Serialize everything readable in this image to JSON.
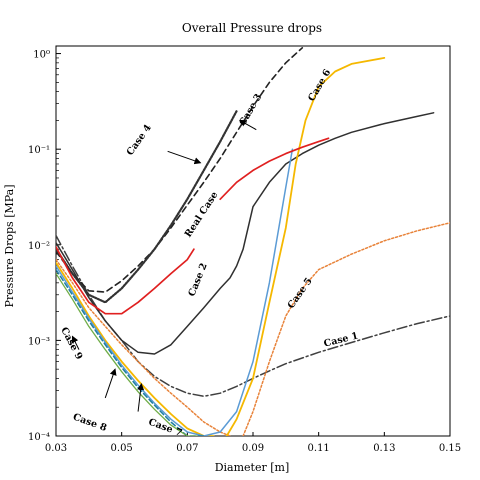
{
  "chart_data": {
    "type": "line",
    "title": "Overall Pressure drops",
    "xlabel": "Diameter [m]",
    "ylabel": "Pressure Drops [MPa]",
    "xlim": [
      0.03,
      0.15
    ],
    "ylim": [
      0.0001,
      1.2
    ],
    "yscale": "log",
    "grid": false,
    "legend": "none",
    "x_ticks": [
      0.03,
      0.05,
      0.07,
      0.09,
      0.11,
      0.13,
      0.15
    ],
    "x_tick_labels": [
      "0.03",
      "0.05",
      "0.07",
      "0.09",
      "0.11",
      "0.13",
      "0.15"
    ],
    "y_ticks": [
      0.0001,
      0.001,
      0.01,
      0.1,
      1
    ],
    "y_tick_labels": [
      "10⁻⁴",
      "10⁻³",
      "10⁻²",
      "10⁻¹",
      "10⁰"
    ],
    "series": [
      {
        "name": "Case 1",
        "color": "#404040",
        "dash": "10 3 2 3",
        "width": 1.5,
        "points": [
          [
            0.03,
            0.0125
          ],
          [
            0.035,
            0.006
          ],
          [
            0.04,
            0.003
          ],
          [
            0.045,
            0.0016
          ],
          [
            0.05,
            0.001
          ],
          [
            0.055,
            0.0006
          ],
          [
            0.06,
            0.00042
          ],
          [
            0.065,
            0.00033
          ],
          [
            0.07,
            0.00028
          ],
          [
            0.075,
            0.00026
          ],
          [
            0.08,
            0.00028
          ],
          [
            0.085,
            0.00033
          ],
          [
            0.09,
            0.0004
          ],
          [
            0.095,
            0.00048
          ],
          [
            0.1,
            0.00057
          ],
          [
            0.11,
            0.00075
          ],
          [
            0.12,
            0.00095
          ],
          [
            0.13,
            0.0012
          ],
          [
            0.14,
            0.0015
          ],
          [
            0.15,
            0.0018
          ]
        ]
      },
      {
        "name": "Case 2",
        "color": "#303030",
        "dash": "",
        "width": 1.5,
        "points": [
          [
            0.03,
            0.0105
          ],
          [
            0.035,
            0.0055
          ],
          [
            0.04,
            0.0028
          ],
          [
            0.045,
            0.0016
          ],
          [
            0.05,
            0.001
          ],
          [
            0.055,
            0.00075
          ],
          [
            0.06,
            0.00072
          ],
          [
            0.065,
            0.0009
          ],
          [
            0.07,
            0.0014
          ],
          [
            0.075,
            0.0022
          ],
          [
            0.08,
            0.0035
          ],
          [
            0.083,
            0.0045
          ],
          [
            0.085,
            0.006
          ],
          [
            0.087,
            0.009
          ],
          [
            0.09,
            0.025
          ],
          [
            0.095,
            0.045
          ],
          [
            0.1,
            0.07
          ],
          [
            0.105,
            0.09
          ],
          [
            0.11,
            0.11
          ],
          [
            0.115,
            0.13
          ],
          [
            0.12,
            0.15
          ],
          [
            0.13,
            0.185
          ],
          [
            0.14,
            0.22
          ],
          [
            0.145,
            0.24
          ]
        ]
      },
      {
        "name": "Case 3",
        "color": "#222222",
        "dash": "6 4",
        "width": 1.6,
        "points": [
          [
            0.03,
            0.0085
          ],
          [
            0.035,
            0.005
          ],
          [
            0.04,
            0.0033
          ],
          [
            0.045,
            0.0032
          ],
          [
            0.05,
            0.0042
          ],
          [
            0.055,
            0.006
          ],
          [
            0.06,
            0.009
          ],
          [
            0.065,
            0.015
          ],
          [
            0.07,
            0.026
          ],
          [
            0.075,
            0.045
          ],
          [
            0.08,
            0.08
          ],
          [
            0.085,
            0.15
          ],
          [
            0.09,
            0.28
          ],
          [
            0.095,
            0.5
          ],
          [
            0.1,
            0.8
          ],
          [
            0.105,
            1.15
          ]
        ]
      },
      {
        "name": "Case 4",
        "color": "#333333",
        "dash": "1.5 1.5",
        "width": 2.2,
        "points": [
          [
            0.03,
            0.009
          ],
          [
            0.035,
            0.005
          ],
          [
            0.04,
            0.003
          ],
          [
            0.045,
            0.0025
          ],
          [
            0.05,
            0.0035
          ],
          [
            0.055,
            0.0055
          ],
          [
            0.06,
            0.009
          ],
          [
            0.065,
            0.016
          ],
          [
            0.07,
            0.03
          ],
          [
            0.075,
            0.06
          ],
          [
            0.08,
            0.12
          ],
          [
            0.085,
            0.25
          ]
        ]
      },
      {
        "name": "Case 5",
        "color": "#e8833a",
        "dash": "2 2",
        "width": 1.5,
        "points": [
          [
            0.03,
            0.007
          ],
          [
            0.035,
            0.004
          ],
          [
            0.04,
            0.0022
          ],
          [
            0.045,
            0.0014
          ],
          [
            0.05,
            0.0009
          ],
          [
            0.055,
            0.0006
          ],
          [
            0.06,
            0.0004
          ],
          [
            0.065,
            0.00028
          ],
          [
            0.07,
            0.0002
          ],
          [
            0.075,
            0.00014
          ],
          [
            0.08,
            0.00011
          ],
          [
            0.083,
            0.0001
          ]
        ]
      },
      {
        "name": "Case 5",
        "color": "#e8833a",
        "dash": "2 2",
        "width": 1.5,
        "points": [
          [
            0.087,
            0.0001
          ],
          [
            0.09,
            0.00018
          ],
          [
            0.095,
            0.0006
          ],
          [
            0.1,
            0.0018
          ],
          [
            0.105,
            0.0035
          ],
          [
            0.11,
            0.0055
          ],
          [
            0.12,
            0.008
          ],
          [
            0.13,
            0.011
          ],
          [
            0.14,
            0.014
          ],
          [
            0.15,
            0.017
          ]
        ]
      },
      {
        "name": "Case 6",
        "color": "#f5b800",
        "dash": "",
        "width": 1.8,
        "points": [
          [
            0.03,
            0.0065
          ],
          [
            0.035,
            0.0035
          ],
          [
            0.04,
            0.0018
          ],
          [
            0.045,
            0.001
          ],
          [
            0.05,
            0.0006
          ],
          [
            0.055,
            0.00038
          ],
          [
            0.06,
            0.00025
          ],
          [
            0.065,
            0.00017
          ],
          [
            0.07,
            0.00012
          ],
          [
            0.075,
            0.0001
          ],
          [
            0.078,
            0.0001
          ]
        ]
      },
      {
        "name": "Case 6",
        "color": "#f5b800",
        "dash": "",
        "width": 1.8,
        "points": [
          [
            0.082,
            0.0001
          ],
          [
            0.085,
            0.00015
          ],
          [
            0.09,
            0.0004
          ],
          [
            0.095,
            0.0025
          ],
          [
            0.1,
            0.015
          ],
          [
            0.103,
            0.07
          ],
          [
            0.106,
            0.2
          ],
          [
            0.11,
            0.45
          ],
          [
            0.115,
            0.65
          ],
          [
            0.12,
            0.78
          ],
          [
            0.13,
            0.9
          ]
        ]
      },
      {
        "name": "Case 7",
        "color": "#5b9bd5",
        "dash": "",
        "width": 1.5,
        "points": [
          [
            0.03,
            0.006
          ],
          [
            0.035,
            0.0032
          ],
          [
            0.04,
            0.0017
          ],
          [
            0.045,
            0.00095
          ],
          [
            0.05,
            0.00055
          ],
          [
            0.055,
            0.00034
          ],
          [
            0.06,
            0.00022
          ],
          [
            0.065,
            0.00015
          ],
          [
            0.07,
            0.00011
          ],
          [
            0.075,
            0.0001
          ],
          [
            0.08,
            0.00011
          ],
          [
            0.085,
            0.00018
          ],
          [
            0.09,
            0.0006
          ],
          [
            0.095,
            0.004
          ],
          [
            0.1,
            0.04
          ],
          [
            0.102,
            0.1
          ]
        ]
      },
      {
        "name": "Case 8",
        "color": "#1f7fa0",
        "dash": "5 3",
        "width": 1.5,
        "points": [
          [
            0.03,
            0.0055
          ],
          [
            0.035,
            0.003
          ],
          [
            0.04,
            0.0016
          ],
          [
            0.045,
            0.0009
          ],
          [
            0.05,
            0.00052
          ],
          [
            0.055,
            0.00032
          ],
          [
            0.06,
            0.00021
          ],
          [
            0.065,
            0.00014
          ],
          [
            0.07,
            0.0001
          ],
          [
            0.075,
            0.0001
          ]
        ]
      },
      {
        "name": "Case 9",
        "color": "#70ad47",
        "dash": "",
        "width": 1.3,
        "points": [
          [
            0.03,
            0.005
          ],
          [
            0.035,
            0.0027
          ],
          [
            0.04,
            0.0014
          ],
          [
            0.045,
            0.0008
          ],
          [
            0.05,
            0.00047
          ],
          [
            0.055,
            0.00029
          ],
          [
            0.06,
            0.00019
          ],
          [
            0.065,
            0.00013
          ],
          [
            0.07,
            0.0001
          ],
          [
            0.073,
            0.0001
          ]
        ]
      },
      {
        "name": "Real Case",
        "color": "#e02020",
        "dash": "",
        "width": 1.7,
        "points": [
          [
            0.03,
            0.0095
          ],
          [
            0.035,
            0.0045
          ],
          [
            0.04,
            0.0025
          ],
          [
            0.045,
            0.0019
          ],
          [
            0.05,
            0.0019
          ],
          [
            0.055,
            0.0025
          ],
          [
            0.06,
            0.0035
          ],
          [
            0.065,
            0.005
          ],
          [
            0.07,
            0.007
          ],
          [
            0.072,
            0.009
          ]
        ]
      },
      {
        "name": "Real Case",
        "color": "#e02020",
        "dash": "",
        "width": 1.7,
        "points": [
          [
            0.08,
            0.03
          ],
          [
            0.085,
            0.045
          ],
          [
            0.09,
            0.06
          ],
          [
            0.095,
            0.075
          ],
          [
            0.1,
            0.09
          ],
          [
            0.105,
            0.105
          ],
          [
            0.11,
            0.12
          ],
          [
            0.113,
            0.13
          ]
        ]
      }
    ],
    "annotations": [
      {
        "text": "Case 1",
        "x": 0.117,
        "y": 0.00095,
        "rotate": -14
      },
      {
        "text": "Case 2",
        "x": 0.074,
        "y": 0.0042,
        "rotate": -68
      },
      {
        "text": "Case 3",
        "x": 0.09,
        "y": 0.25,
        "rotate": -60
      },
      {
        "text": "Case 4",
        "x": 0.056,
        "y": 0.12,
        "rotate": -55
      },
      {
        "text": "Case 5",
        "x": 0.105,
        "y": 0.003,
        "rotate": -55
      },
      {
        "text": "Case 6",
        "x": 0.111,
        "y": 0.45,
        "rotate": -60
      },
      {
        "text": "Case 7",
        "x": 0.063,
        "y": 0.000115,
        "rotate": 20
      },
      {
        "text": "Case 8",
        "x": 0.04,
        "y": 0.00013,
        "rotate": 20
      },
      {
        "text": "Case 9",
        "x": 0.034,
        "y": 0.0009,
        "rotate": 62
      },
      {
        "text": "Real Case",
        "x": 0.075,
        "y": 0.02,
        "rotate": -57
      }
    ],
    "arrows": [
      {
        "from": [
          0.064,
          0.095
        ],
        "to": [
          0.074,
          0.072
        ]
      },
      {
        "from": [
          0.091,
          0.16
        ],
        "to": [
          0.086,
          0.2
        ]
      },
      {
        "from": [
          0.045,
          0.00025
        ],
        "to": [
          0.048,
          0.0005
        ]
      },
      {
        "from": [
          0.055,
          0.00018
        ],
        "to": [
          0.056,
          0.00035
        ]
      },
      {
        "from": [
          0.037,
          0.0008
        ],
        "to": [
          0.035,
          0.0011
        ]
      }
    ]
  }
}
